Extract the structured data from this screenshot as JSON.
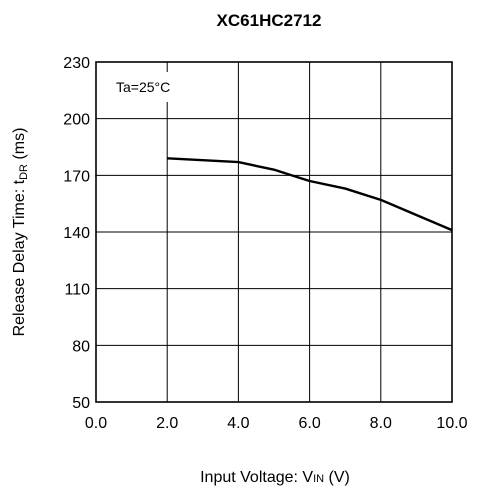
{
  "chart_data": {
    "type": "line",
    "title": "XC61HC2712",
    "xlabel": {
      "prefix": "Input Voltage: V",
      "sub": "IN",
      "suffix": " (V)"
    },
    "ylabel": {
      "prefix": "Release Delay Time: t",
      "sub": "DR",
      "suffix": " (ms)"
    },
    "annotation": "Ta=25°C",
    "xlim": [
      0,
      10
    ],
    "ylim": [
      50,
      230
    ],
    "xticks": [
      0,
      2,
      4,
      6,
      8,
      10
    ],
    "xtick_labels": [
      "0.0",
      "2.0",
      "4.0",
      "6.0",
      "8.0",
      "10.0"
    ],
    "yticks": [
      50,
      80,
      110,
      140,
      170,
      200,
      230
    ],
    "ytick_labels": [
      "50",
      "80",
      "110",
      "140",
      "170",
      "200",
      "230"
    ],
    "grid": true,
    "series": [
      {
        "x": [
          2.0,
          3.0,
          4.0,
          4.5,
          5.0,
          5.5,
          6.0,
          7.0,
          8.0,
          9.0,
          10.0
        ],
        "y": [
          179,
          178,
          177,
          175,
          173,
          170,
          167,
          163,
          157,
          149,
          141
        ],
        "color": "#000000"
      }
    ]
  }
}
